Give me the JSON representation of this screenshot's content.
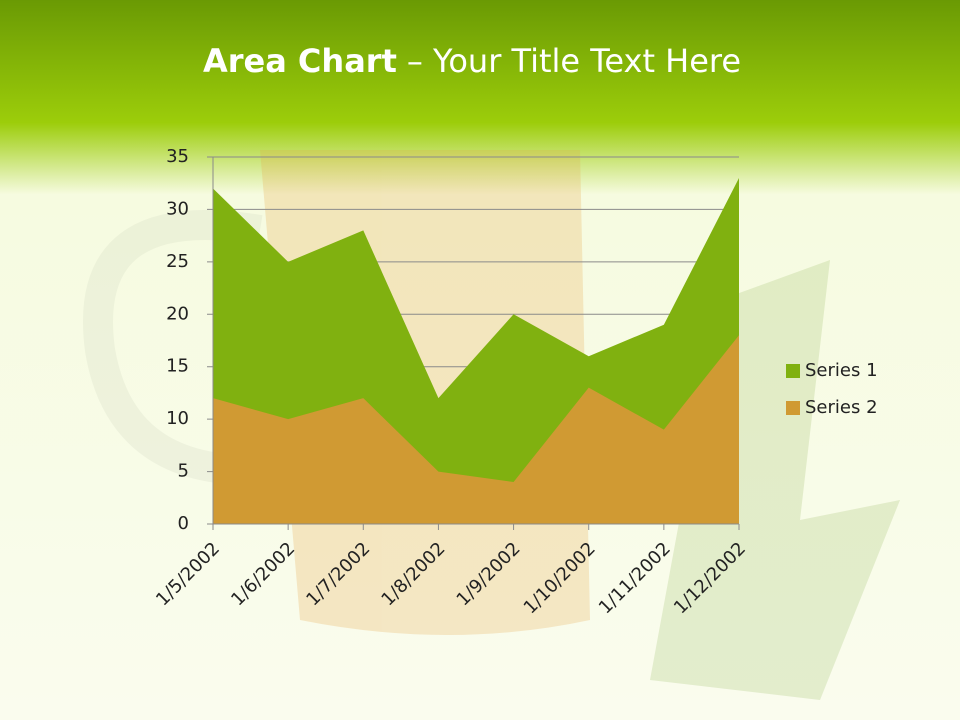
{
  "chart_data": {
    "type": "area",
    "title_parts": [
      "Area Chart",
      "– Your Title Text Here"
    ],
    "categories": [
      "1/5/2002",
      "1/6/2002",
      "1/7/2002",
      "1/8/2002",
      "1/9/2002",
      "1/10/2002",
      "1/11/2002",
      "1/12/2002"
    ],
    "series": [
      {
        "name": "Series 1",
        "color": "#80b110",
        "values": [
          32,
          25,
          28,
          12,
          20,
          16,
          19,
          33
        ]
      },
      {
        "name": "Series 2",
        "color": "#d09a33",
        "values": [
          12,
          10,
          12,
          5,
          4,
          13,
          9,
          18
        ]
      }
    ],
    "ylim": [
      0,
      35
    ],
    "yticks": [
      0,
      5,
      10,
      15,
      20,
      25,
      30,
      35
    ],
    "grid": true,
    "legend": "right"
  }
}
